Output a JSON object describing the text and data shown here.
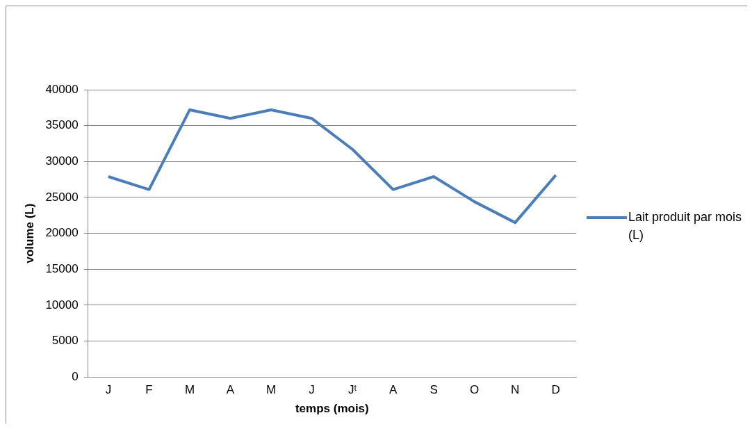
{
  "chart_data": {
    "type": "line",
    "xlabel": "temps (mois)",
    "ylabel": "volume (L)",
    "categories": [
      "J",
      "F",
      "M",
      "A",
      "M",
      "J",
      "Jᵗ",
      "A",
      "S",
      "O",
      "N",
      "D"
    ],
    "series": [
      {
        "name": "Lait produit par mois (L)",
        "color": "#4a7ebb",
        "values": [
          27900,
          26100,
          37200,
          36000,
          37200,
          36000,
          31700,
          26100,
          27900,
          24400,
          21500,
          28100
        ]
      }
    ],
    "ylim": [
      0,
      40000
    ],
    "yticks": [
      0,
      5000,
      10000,
      15000,
      20000,
      25000,
      30000,
      35000,
      40000
    ],
    "grid": "y",
    "legend": "right",
    "marker": "none",
    "line_style": "solid"
  }
}
